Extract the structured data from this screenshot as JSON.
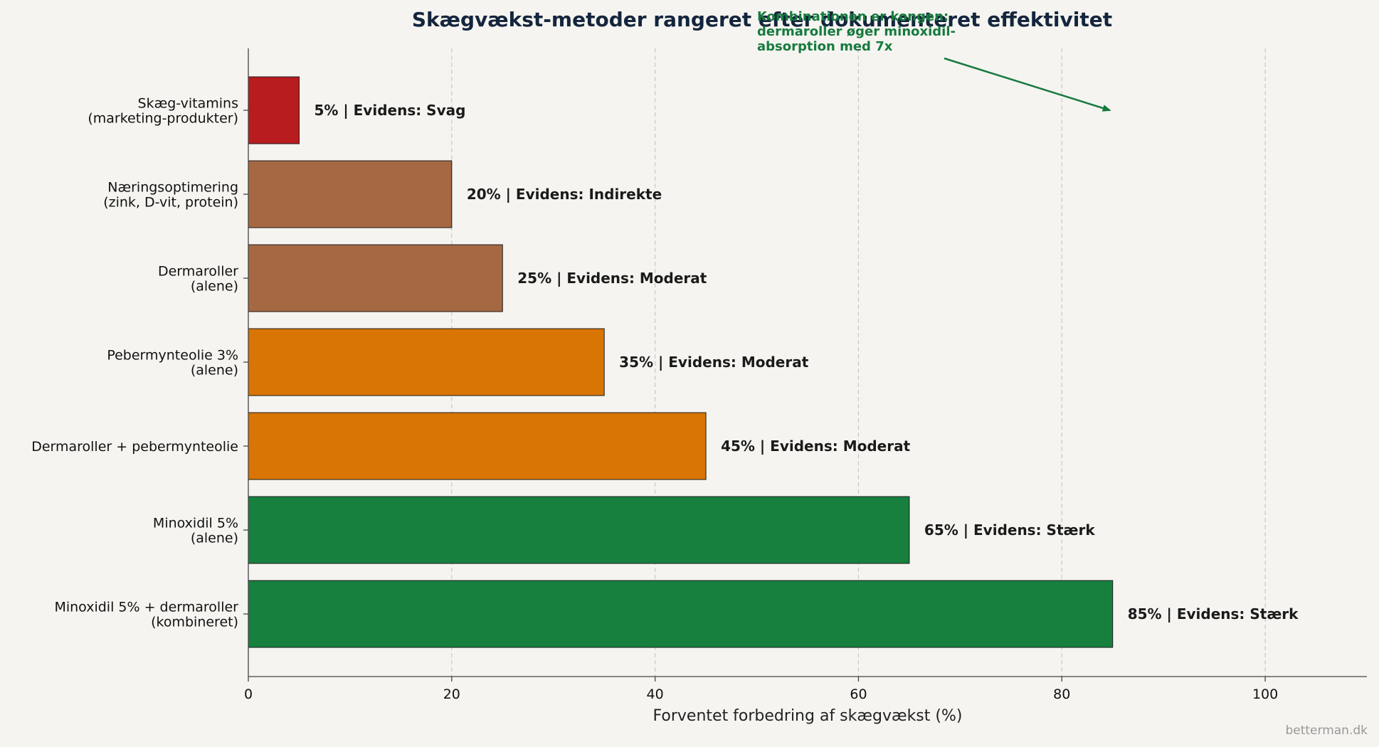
{
  "chart_data": {
    "type": "bar",
    "orientation": "horizontal",
    "title": "Skægvækst-metoder rangeret efter dokumenteret effektivitet",
    "xlabel": "Forventet forbedring af skægvækst (%)",
    "ylabel": "",
    "xlim": [
      0,
      110
    ],
    "xticks": [
      0,
      20,
      40,
      60,
      80,
      100
    ],
    "grid": "x-dashed",
    "categories": [
      [
        "Skæg-vitamins",
        "(marketing-produkter)"
      ],
      [
        "Næringsoptimering",
        "(zink, D-vit, protein)"
      ],
      [
        "Dermaroller",
        "(alene)"
      ],
      [
        "Pebermynteolie 3%",
        "(alene)"
      ],
      [
        "Dermaroller + pebermynteolie"
      ],
      [
        "Minoxidil 5%",
        "(alene)"
      ],
      [
        "Minoxidil 5% + dermaroller",
        "(kombineret)"
      ]
    ],
    "values": [
      5,
      20,
      25,
      35,
      45,
      65,
      85
    ],
    "colors": [
      "#b81c1f",
      "#a66842",
      "#a66842",
      "#d97504",
      "#d97504",
      "#17803f",
      "#17803f"
    ],
    "data_labels": [
      "5%  |  Evidens: Svag",
      "20%  |  Evidens: Indirekte",
      "25%  |  Evidens: Moderat",
      "35%  |  Evidens: Moderat",
      "45%  |  Evidens: Moderat",
      "65%  |  Evidens: Stærk",
      "85%  |  Evidens: Stærk"
    ],
    "annotation": {
      "lines": [
        "Kombinationen er kongen:",
        "dermaroller øger minoxidil-",
        "absorption med 7x"
      ],
      "arrow_to": {
        "x": 85,
        "category_index": 0
      }
    },
    "credit": "betterman.dk"
  }
}
